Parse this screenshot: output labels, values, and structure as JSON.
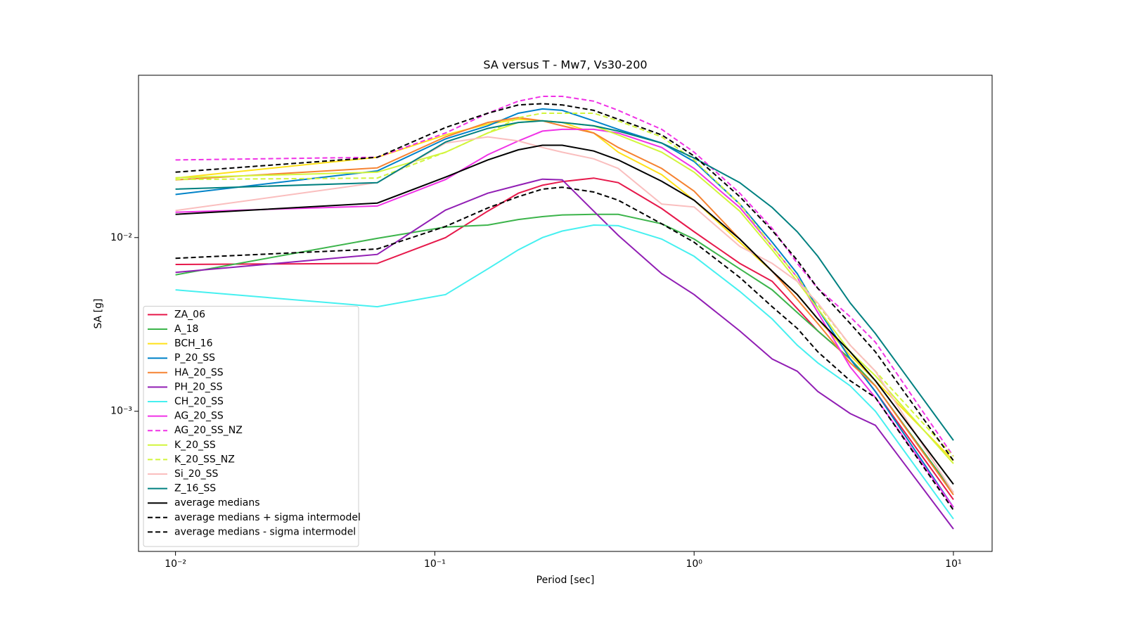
{
  "chart_data": {
    "type": "line",
    "title": "SA versus T - Mw7, Vs30-200",
    "x_label": "Period [sec]",
    "y_label": "SA [g]",
    "x_scale": "log",
    "y_scale": "log",
    "legend": "lower left",
    "xlim": [
      0.0072,
      14.1
    ],
    "ylim": [
      0.000156,
      0.086
    ],
    "xticks": [
      {
        "value": 0.01,
        "label": "10⁻²"
      },
      {
        "value": 0.1,
        "label": "10⁻¹"
      },
      {
        "value": 1,
        "label": "10⁰"
      },
      {
        "value": 10,
        "label": "10¹"
      }
    ],
    "yticks": [
      {
        "value": 0.001,
        "label": "10⁻³"
      },
      {
        "value": 0.01,
        "label": "10⁻²"
      }
    ],
    "x": [
      0.01,
      0.06,
      0.11,
      0.16,
      0.21,
      0.26,
      0.31,
      0.41,
      0.51,
      0.75,
      1,
      1.5,
      2,
      2.5,
      3,
      4,
      5,
      10
    ],
    "series": [
      {
        "name": "ZA_06",
        "color": "#e6194b",
        "linestyle": "solid",
        "values": [
          0.007,
          0.0071,
          0.01,
          0.0142,
          0.018,
          0.02,
          0.021,
          0.022,
          0.0207,
          0.0147,
          0.0108,
          0.0071,
          0.0056,
          0.0039,
          0.0029,
          0.002,
          0.0013,
          0.00031
        ]
      },
      {
        "name": "A_18",
        "color": "#3cb44b",
        "linestyle": "solid",
        "values": [
          0.0061,
          0.0099,
          0.0115,
          0.0118,
          0.0127,
          0.0132,
          0.0135,
          0.0136,
          0.0136,
          0.012,
          0.0098,
          0.0066,
          0.005,
          0.0037,
          0.0029,
          0.002,
          0.0014,
          0.00034
        ]
      },
      {
        "name": "BCH_16",
        "color": "#ffe119",
        "linestyle": "solid",
        "values": [
          0.022,
          0.029,
          0.039,
          0.045,
          0.048,
          0.047,
          0.046,
          0.04,
          0.031,
          0.023,
          0.0164,
          0.0094,
          0.0064,
          0.0047,
          0.0034,
          0.0021,
          0.0015,
          0.00052
        ]
      },
      {
        "name": "P_20_SS",
        "color": "#0082c8",
        "linestyle": "solid",
        "values": [
          0.0177,
          0.0242,
          0.037,
          0.044,
          0.052,
          0.055,
          0.054,
          0.047,
          0.042,
          0.035,
          0.0274,
          0.0156,
          0.0094,
          0.0062,
          0.0039,
          0.002,
          0.0013,
          0.00028
        ]
      },
      {
        "name": "HA_20_SS",
        "color": "#f58231",
        "linestyle": "solid",
        "values": [
          0.0215,
          0.0252,
          0.038,
          0.046,
          0.049,
          0.047,
          0.044,
          0.04,
          0.033,
          0.025,
          0.0185,
          0.0098,
          0.0064,
          0.0044,
          0.0032,
          0.0019,
          0.0014,
          0.00033
        ]
      },
      {
        "name": "PH_20_SS",
        "color": "#911eb4",
        "linestyle": "solid",
        "values": [
          0.0063,
          0.008,
          0.0144,
          0.018,
          0.02,
          0.0217,
          0.0215,
          0.0142,
          0.0103,
          0.0062,
          0.0047,
          0.0029,
          0.002,
          0.0017,
          0.0013,
          0.00097,
          0.00083,
          0.00021
        ]
      },
      {
        "name": "CH_20_SS",
        "color": "#46f0f0",
        "linestyle": "solid",
        "values": [
          0.005,
          0.004,
          0.0047,
          0.0066,
          0.0085,
          0.01,
          0.0109,
          0.0118,
          0.0117,
          0.0098,
          0.0078,
          0.0049,
          0.0034,
          0.0024,
          0.0019,
          0.0014,
          0.001,
          0.00024
        ]
      },
      {
        "name": "AG_20_SS",
        "color": "#f032e6",
        "linestyle": "solid",
        "values": [
          0.014,
          0.0152,
          0.0216,
          0.03,
          0.036,
          0.041,
          0.042,
          0.042,
          0.04,
          0.033,
          0.025,
          0.0149,
          0.0089,
          0.0059,
          0.0037,
          0.0018,
          0.0012,
          0.00028
        ]
      },
      {
        "name": "AG_20_SS_NZ",
        "color": "#f032e6",
        "linestyle": "dashed",
        "values": [
          0.028,
          0.029,
          0.04,
          0.052,
          0.061,
          0.065,
          0.065,
          0.061,
          0.054,
          0.042,
          0.031,
          0.018,
          0.0113,
          0.0071,
          0.0051,
          0.0035,
          0.0025,
          0.00055
        ]
      },
      {
        "name": "K_20_SS",
        "color": "#d2f53c",
        "linestyle": "solid",
        "values": [
          0.0221,
          0.0238,
          0.031,
          0.04,
          0.046,
          0.047,
          0.046,
          0.044,
          0.039,
          0.031,
          0.0238,
          0.0142,
          0.0085,
          0.0056,
          0.0039,
          0.0022,
          0.0016,
          0.0005
        ]
      },
      {
        "name": "K_20_SS_NZ",
        "color": "#d2f53c",
        "linestyle": "dashed",
        "values": [
          0.0216,
          0.022,
          0.031,
          0.04,
          0.049,
          0.052,
          0.052,
          0.052,
          0.047,
          0.038,
          0.028,
          0.0156,
          0.0089,
          0.0059,
          0.0041,
          0.0024,
          0.0017,
          0.00055
        ]
      },
      {
        "name": "Si_20_SS",
        "color": "#fabebe",
        "linestyle": "solid",
        "values": [
          0.0143,
          0.0207,
          0.035,
          0.038,
          0.036,
          0.033,
          0.031,
          0.0284,
          0.025,
          0.0156,
          0.015,
          0.0089,
          0.0071,
          0.0056,
          0.0042,
          0.0024,
          0.0017,
          0.00034
        ]
      },
      {
        "name": "Z_16_SS",
        "color": "#008080",
        "linestyle": "solid",
        "values": [
          0.019,
          0.0207,
          0.0355,
          0.0425,
          0.046,
          0.047,
          0.046,
          0.044,
          0.041,
          0.035,
          0.0287,
          0.0207,
          0.0149,
          0.0108,
          0.0078,
          0.0042,
          0.0028,
          0.00068
        ]
      },
      {
        "name": "average medians",
        "color": "#000000",
        "linestyle": "solid",
        "values": [
          0.0136,
          0.0158,
          0.0223,
          0.028,
          0.032,
          0.034,
          0.034,
          0.0315,
          0.028,
          0.0211,
          0.0164,
          0.0098,
          0.0064,
          0.0047,
          0.0034,
          0.0022,
          0.0015,
          0.00038
        ]
      },
      {
        "name": "average medians + sigma intermodel",
        "color": "#000000",
        "linestyle": "dashed",
        "values": [
          0.0238,
          0.029,
          0.043,
          0.052,
          0.058,
          0.059,
          0.058,
          0.054,
          0.048,
          0.039,
          0.0295,
          0.0172,
          0.011,
          0.0074,
          0.0051,
          0.0032,
          0.0022,
          0.00052
        ]
      },
      {
        "name": "average medians - sigma intermodel",
        "color": "#000000",
        "linestyle": "dashed",
        "values": [
          0.0076,
          0.0086,
          0.0116,
          0.0148,
          0.0172,
          0.019,
          0.0195,
          0.0183,
          0.0164,
          0.012,
          0.0094,
          0.0059,
          0.004,
          0.003,
          0.0022,
          0.0015,
          0.0012,
          0.00027
        ]
      }
    ]
  }
}
